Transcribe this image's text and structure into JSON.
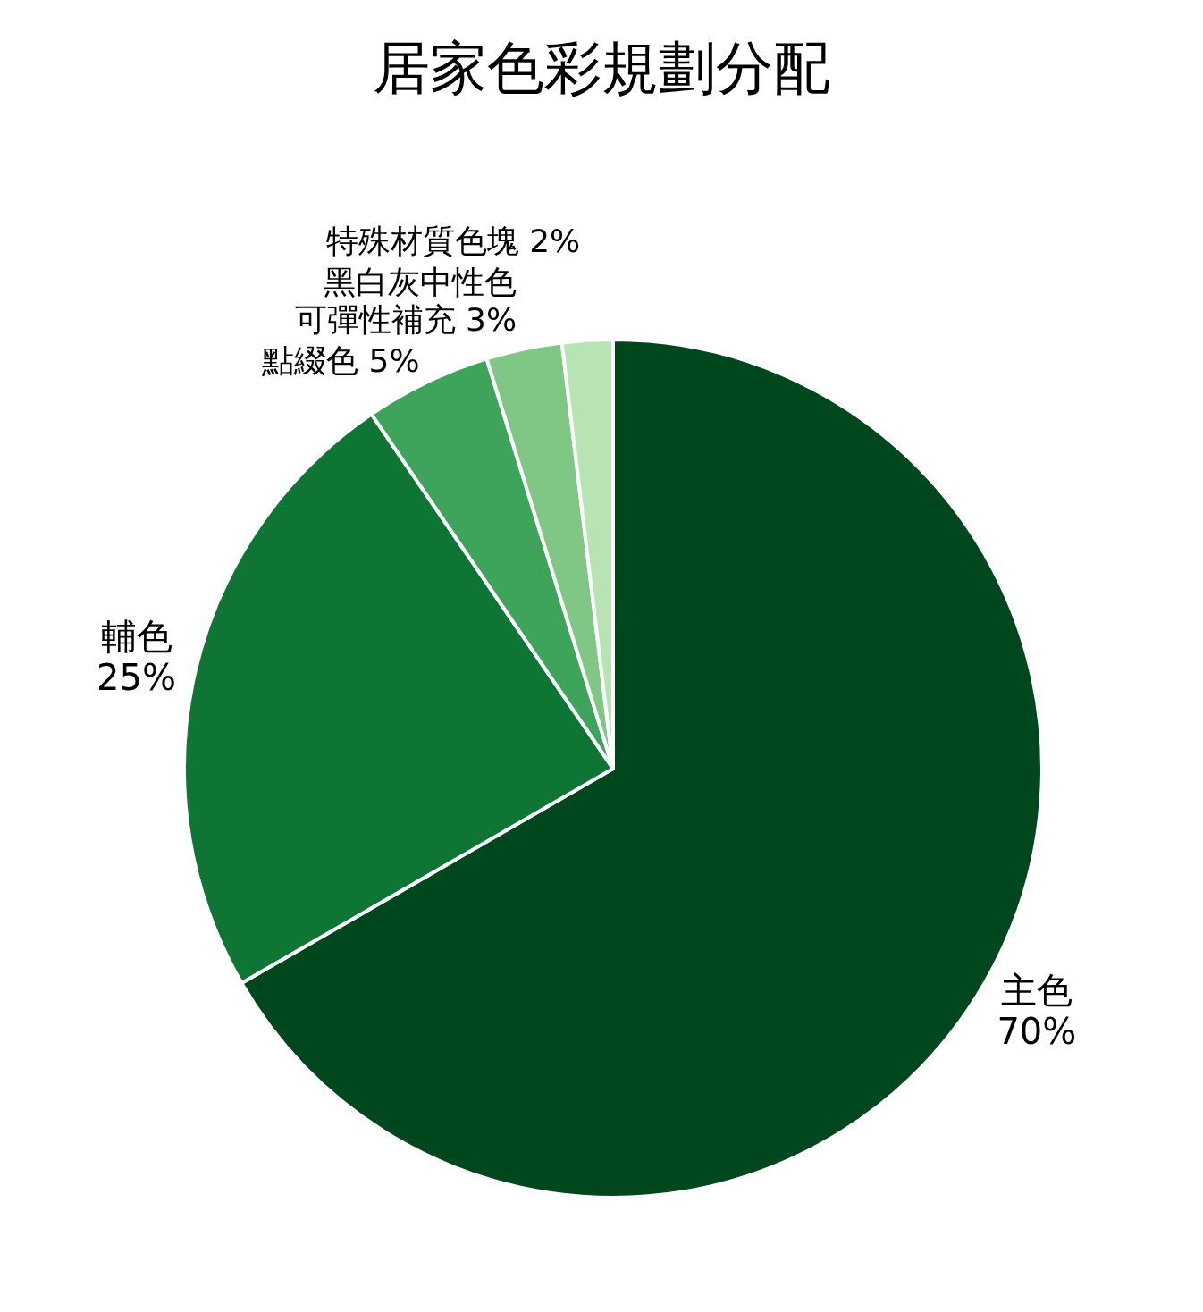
{
  "chart_data": {
    "type": "pie",
    "title": "居家色彩規劃分配",
    "categories": [
      "主色",
      "輔色",
      "點綴色",
      "黑白灰中性色可彈性補充",
      "特殊材質色塊"
    ],
    "values": [
      70,
      25,
      5,
      3,
      2
    ],
    "value_labels": [
      "70%",
      "25%",
      "5%",
      "3%",
      "2%"
    ],
    "colors": [
      "#00471e",
      "#0f7535",
      "#3fa45b",
      "#80c785",
      "#b8e3b3"
    ]
  }
}
